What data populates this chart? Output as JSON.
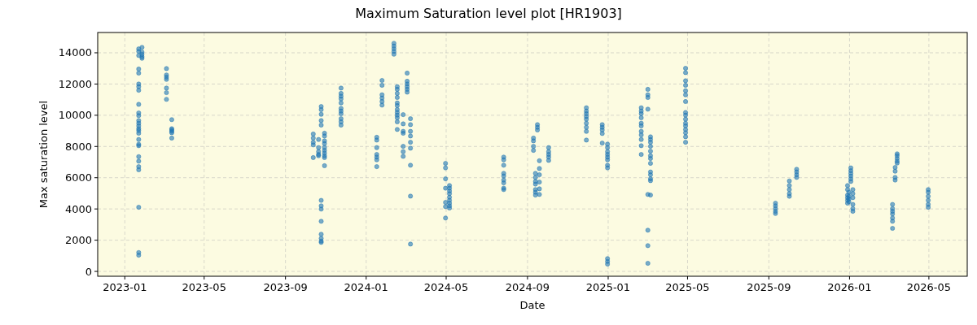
{
  "chart_data": {
    "type": "scatter",
    "title": "Maximum Saturation level plot [HR1903]",
    "xlabel": "Date",
    "ylabel": "Max saturation level",
    "xlim": [
      "2022-11-21",
      "2026-06-28"
    ],
    "xticks": [
      "2023-01",
      "2023-05",
      "2023-09",
      "2024-01",
      "2024-05",
      "2024-09",
      "2025-01",
      "2025-05",
      "2025-09",
      "2026-01",
      "2026-05"
    ],
    "ylim": [
      -310,
      15300
    ],
    "yticks": [
      0,
      2000,
      4000,
      6000,
      8000,
      10000,
      12000,
      14000
    ],
    "grid": true,
    "marker": "circle",
    "series": [
      {
        "color": "#1f77b4",
        "x": [
          "2023-01-22",
          "2023-01-22",
          "2023-01-22",
          "2023-01-22",
          "2023-01-22",
          "2023-01-22",
          "2023-01-22",
          "2023-01-22",
          "2023-01-22",
          "2023-01-22",
          "2023-01-22",
          "2023-01-22",
          "2023-01-22",
          "2023-01-22",
          "2023-01-22",
          "2023-01-22",
          "2023-01-22",
          "2023-01-22",
          "2023-01-22",
          "2023-01-22",
          "2023-01-22",
          "2023-01-22",
          "2023-01-22",
          "2023-01-22",
          "2023-01-22",
          "2023-01-22",
          "2023-01-22",
          "2023-01-27",
          "2023-01-27",
          "2023-01-27",
          "2023-01-27",
          "2023-01-27",
          "2023-03-05",
          "2023-03-05",
          "2023-03-05",
          "2023-03-05",
          "2023-03-05",
          "2023-03-05",
          "2023-03-05",
          "2023-03-13",
          "2023-03-13",
          "2023-03-13",
          "2023-03-13",
          "2023-03-13",
          "2023-03-13",
          "2023-10-13",
          "2023-10-13",
          "2023-10-13",
          "2023-10-13",
          "2023-10-13",
          "2023-10-21",
          "2023-10-21",
          "2023-10-21",
          "2023-10-21",
          "2023-10-21",
          "2023-10-25",
          "2023-10-25",
          "2023-10-25",
          "2023-10-25",
          "2023-10-25",
          "2023-10-25",
          "2023-10-25",
          "2023-10-25",
          "2023-10-25",
          "2023-10-25",
          "2023-10-25",
          "2023-10-25",
          "2023-10-25",
          "2023-10-30",
          "2023-10-30",
          "2023-10-30",
          "2023-10-30",
          "2023-10-30",
          "2023-10-30",
          "2023-10-30",
          "2023-10-30",
          "2023-10-30",
          "2023-10-30",
          "2023-11-24",
          "2023-11-24",
          "2023-11-24",
          "2023-11-24",
          "2023-11-24",
          "2023-11-24",
          "2023-11-24",
          "2023-11-24",
          "2023-11-24",
          "2023-11-24",
          "2023-11-24",
          "2024-01-17",
          "2024-01-17",
          "2024-01-17",
          "2024-01-17",
          "2024-01-17",
          "2024-01-17",
          "2024-01-17",
          "2024-01-25",
          "2024-01-25",
          "2024-01-25",
          "2024-01-25",
          "2024-01-25",
          "2024-01-25",
          "2024-02-12",
          "2024-02-12",
          "2024-02-12",
          "2024-02-12",
          "2024-02-12",
          "2024-02-17",
          "2024-02-17",
          "2024-02-17",
          "2024-02-17",
          "2024-02-17",
          "2024-02-17",
          "2024-02-17",
          "2024-02-17",
          "2024-02-17",
          "2024-02-17",
          "2024-02-17",
          "2024-02-17",
          "2024-02-26",
          "2024-02-26",
          "2024-02-26",
          "2024-02-26",
          "2024-02-26",
          "2024-02-26",
          "2024-02-26",
          "2024-03-03",
          "2024-03-03",
          "2024-03-03",
          "2024-03-03",
          "2024-03-03",
          "2024-03-03",
          "2024-03-08",
          "2024-03-08",
          "2024-03-08",
          "2024-03-08",
          "2024-03-08",
          "2024-03-08",
          "2024-03-08",
          "2024-03-08",
          "2024-03-08",
          "2024-04-30",
          "2024-04-30",
          "2024-04-30",
          "2024-04-30",
          "2024-04-30",
          "2024-04-30",
          "2024-04-30",
          "2024-05-06",
          "2024-05-06",
          "2024-05-06",
          "2024-05-06",
          "2024-05-06",
          "2024-05-06",
          "2024-05-06",
          "2024-05-06",
          "2024-05-06",
          "2024-07-27",
          "2024-07-27",
          "2024-07-27",
          "2024-07-27",
          "2024-07-27",
          "2024-07-27",
          "2024-07-27",
          "2024-07-27",
          "2024-07-27",
          "2024-09-10",
          "2024-09-10",
          "2024-09-10",
          "2024-09-10",
          "2024-09-13",
          "2024-09-13",
          "2024-09-13",
          "2024-09-13",
          "2024-09-13",
          "2024-09-13",
          "2024-09-13",
          "2024-09-16",
          "2024-09-16",
          "2024-09-16",
          "2024-09-19",
          "2024-09-19",
          "2024-09-19",
          "2024-09-19",
          "2024-09-19",
          "2024-09-19",
          "2024-10-03",
          "2024-10-03",
          "2024-10-03",
          "2024-10-03",
          "2024-10-03",
          "2024-11-29",
          "2024-11-29",
          "2024-11-29",
          "2024-11-29",
          "2024-11-29",
          "2024-11-29",
          "2024-11-29",
          "2024-11-29",
          "2024-11-29",
          "2024-12-23",
          "2024-12-23",
          "2024-12-23",
          "2024-12-23",
          "2024-12-23",
          "2024-12-31",
          "2024-12-31",
          "2024-12-31",
          "2024-12-31",
          "2024-12-31",
          "2024-12-31",
          "2024-12-31",
          "2024-12-31",
          "2024-12-31",
          "2024-12-31",
          "2024-12-31",
          "2025-02-20",
          "2025-02-20",
          "2025-02-20",
          "2025-02-20",
          "2025-02-20",
          "2025-02-20",
          "2025-02-20",
          "2025-02-20",
          "2025-02-20",
          "2025-02-20",
          "2025-02-20",
          "2025-03-02",
          "2025-03-02",
          "2025-03-02",
          "2025-03-02",
          "2025-03-02",
          "2025-03-02",
          "2025-03-02",
          "2025-03-02",
          "2025-03-06",
          "2025-03-06",
          "2025-03-06",
          "2025-03-06",
          "2025-03-06",
          "2025-03-06",
          "2025-03-06",
          "2025-03-06",
          "2025-03-06",
          "2025-03-06",
          "2025-03-06",
          "2025-03-06",
          "2025-03-06",
          "2025-04-28",
          "2025-04-28",
          "2025-04-28",
          "2025-04-28",
          "2025-04-28",
          "2025-04-28",
          "2025-04-28",
          "2025-04-28",
          "2025-04-28",
          "2025-04-28",
          "2025-04-28",
          "2025-04-28",
          "2025-04-28",
          "2025-04-28",
          "2025-04-28",
          "2025-04-28",
          "2025-09-11",
          "2025-09-11",
          "2025-09-11",
          "2025-09-11",
          "2025-09-11",
          "2025-10-02",
          "2025-10-02",
          "2025-10-02",
          "2025-10-02",
          "2025-10-02",
          "2025-10-13",
          "2025-10-13",
          "2025-10-13",
          "2025-10-13",
          "2025-12-29",
          "2025-12-29",
          "2025-12-29",
          "2025-12-29",
          "2025-12-29",
          "2025-12-29",
          "2025-12-31",
          "2025-12-31",
          "2025-12-31",
          "2025-12-31",
          "2026-01-03",
          "2026-01-03",
          "2026-01-03",
          "2026-01-03",
          "2026-01-03",
          "2026-01-03",
          "2026-01-06",
          "2026-01-06",
          "2026-01-06",
          "2026-01-06",
          "2026-01-06",
          "2026-01-06",
          "2026-03-07",
          "2026-03-07",
          "2026-03-07",
          "2026-03-07",
          "2026-03-07",
          "2026-03-07",
          "2026-03-07",
          "2026-03-11",
          "2026-03-11",
          "2026-03-11",
          "2026-03-11",
          "2026-03-14",
          "2026-03-14",
          "2026-03-14",
          "2026-03-14",
          "2026-03-14",
          "2026-04-30",
          "2026-04-30",
          "2026-04-30",
          "2026-04-30",
          "2026-04-30",
          "2026-04-30"
        ],
        "values": [
          14250,
          14090,
          13830,
          12960,
          12700,
          12000,
          11830,
          11600,
          10700,
          10150,
          9980,
          9660,
          9490,
          9320,
          9140,
          9020,
          8850,
          8450,
          8140,
          8050,
          7350,
          7060,
          6710,
          6510,
          4110,
          1210,
          1040,
          14350,
          14050,
          13900,
          13750,
          13650,
          12990,
          12580,
          12440,
          12300,
          11740,
          11450,
          11020,
          9720,
          9140,
          9060,
          8970,
          8880,
          8540,
          8800,
          8540,
          8270,
          8100,
          7290,
          8450,
          7930,
          7670,
          7490,
          7410,
          10560,
          10360,
          10060,
          9660,
          9370,
          4550,
          4200,
          3990,
          3210,
          2380,
          2120,
          1940,
          1860,
          8850,
          8670,
          8360,
          8190,
          7930,
          7750,
          7580,
          7410,
          7290,
          6770,
          11740,
          11400,
          11220,
          11050,
          10790,
          10440,
          10270,
          10100,
          9780,
          9580,
          9370,
          8590,
          8410,
          7930,
          7490,
          7320,
          7150,
          6710,
          12230,
          11920,
          11310,
          11100,
          10880,
          10650,
          14610,
          14430,
          14260,
          14090,
          13910,
          11830,
          11660,
          11400,
          11140,
          10790,
          10620,
          10360,
          10180,
          10010,
          9840,
          9580,
          9090,
          10040,
          9450,
          8970,
          8850,
          8010,
          7670,
          7370,
          12700,
          12180,
          12000,
          11830,
          11660,
          11480,
          9780,
          9400,
          8970,
          8670,
          8270,
          7890,
          6800,
          4820,
          1750,
          6920,
          6630,
          5930,
          5330,
          4420,
          4150,
          3420,
          5500,
          5330,
          5150,
          4980,
          4750,
          4550,
          4370,
          4200,
          4060,
          7320,
          7150,
          6800,
          6280,
          6110,
          5850,
          5670,
          5330,
          5240,
          8540,
          8360,
          8010,
          7750,
          6280,
          6020,
          5760,
          5590,
          5240,
          5070,
          4890,
          9400,
          9230,
          9060,
          7090,
          6590,
          6190,
          5720,
          5290,
          4930,
          7930,
          7670,
          7490,
          7320,
          7110,
          10480,
          10270,
          10100,
          9920,
          9750,
          9490,
          9230,
          8970,
          8410,
          9400,
          9230,
          9060,
          8830,
          8220,
          8150,
          7930,
          7670,
          7490,
          7320,
          7150,
          6800,
          6630,
          820,
          640,
          470,
          10480,
          10270,
          10100,
          9840,
          9490,
          9320,
          8970,
          8740,
          8450,
          8050,
          7490,
          11660,
          11310,
          11140,
          10390,
          4930,
          2640,
          1650,
          520,
          8620,
          8450,
          8270,
          8010,
          7700,
          7410,
          7230,
          6920,
          6370,
          6190,
          5930,
          5810,
          4890,
          13010,
          12730,
          12210,
          11920,
          11570,
          11310,
          10880,
          10180,
          10010,
          9750,
          9490,
          9320,
          9090,
          8880,
          8620,
          8270,
          4370,
          4200,
          4020,
          3850,
          3710,
          5790,
          5500,
          5240,
          4980,
          4810,
          6540,
          6370,
          6190,
          6020,
          5500,
          5240,
          4890,
          4720,
          4550,
          4370,
          5070,
          4810,
          4630,
          4460,
          6630,
          6450,
          6280,
          6110,
          5930,
          5760,
          5240,
          4980,
          4720,
          4290,
          4020,
          3850,
          4290,
          4020,
          3850,
          3680,
          3420,
          3210,
          2760,
          6660,
          6420,
          6020,
          5850,
          7530,
          7410,
          7230,
          7060,
          6940,
          5240,
          5070,
          4810,
          4550,
          4290,
          4110
        ]
      }
    ]
  }
}
